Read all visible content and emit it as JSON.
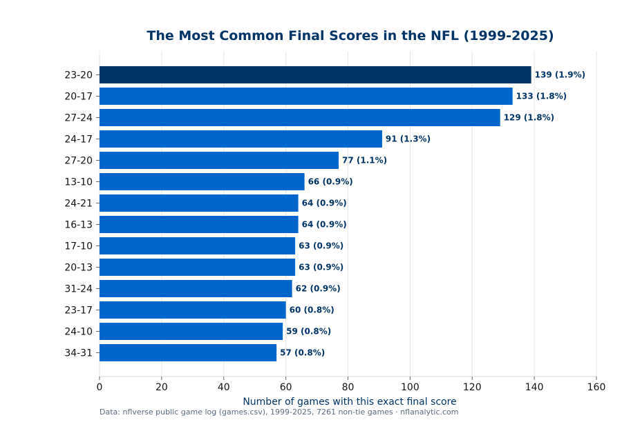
{
  "chart_data": {
    "type": "bar",
    "orientation": "horizontal",
    "title": "The Most Common Final Scores in the NFL (1999-2025)",
    "xlabel": "Number of games with this exact final score",
    "ylabel": "",
    "xlim": [
      0,
      160
    ],
    "xticks": [
      0,
      20,
      40,
      60,
      80,
      100,
      120,
      140,
      160
    ],
    "grid": "vertical",
    "categories": [
      "23-20",
      "20-17",
      "27-24",
      "24-17",
      "27-20",
      "13-10",
      "24-21",
      "16-13",
      "17-10",
      "20-13",
      "31-24",
      "23-17",
      "24-10",
      "34-31"
    ],
    "values": [
      139,
      133,
      129,
      91,
      77,
      66,
      64,
      64,
      63,
      63,
      62,
      60,
      59,
      57
    ],
    "data_labels": [
      "139  (1.9%)",
      "133  (1.8%)",
      "129  (1.8%)",
      "91  (1.3%)",
      "77  (1.1%)",
      "66  (0.9%)",
      "64  (0.9%)",
      "64  (0.9%)",
      "63  (0.9%)",
      "63  (0.9%)",
      "62  (0.9%)",
      "60  (0.8%)",
      "59  (0.8%)",
      "57  (0.8%)"
    ],
    "highlight_index": 0,
    "colors": {
      "highlight": "#003366",
      "bar": "#0066cc",
      "label": "#003366",
      "title": "#003366"
    }
  },
  "footnote": "Data: nflverse public game log (games.csv), 1999-2025, 7261 non-tie games · nflanalytic.com"
}
